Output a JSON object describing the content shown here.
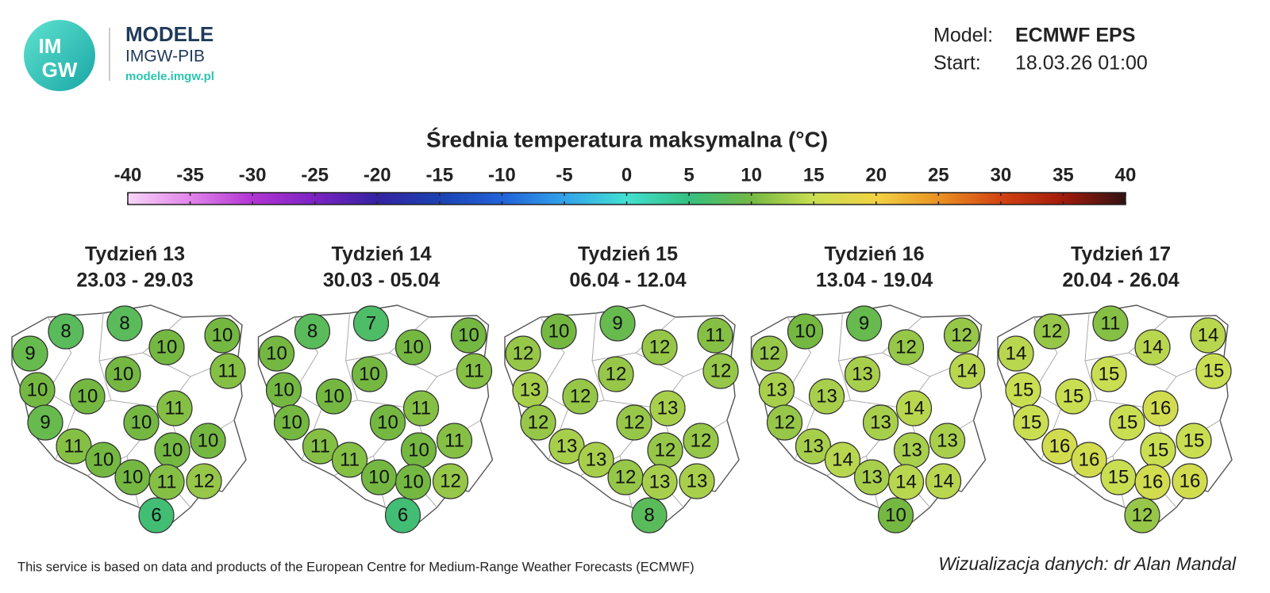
{
  "header": {
    "logo_lines": [
      "IM",
      "GW"
    ],
    "brand_title": "MODELE",
    "brand_subtitle": "IMGW-PIB",
    "brand_url": "modele.imgw.pl",
    "model_label": "Model:",
    "model_value": "ECMWF EPS",
    "start_label": "Start:",
    "start_value": "18.03.26 01:00"
  },
  "title": "Średnia temperatura maksymalna (°C)",
  "colorbar": {
    "ticks": [
      -40,
      -35,
      -30,
      -25,
      -20,
      -15,
      -10,
      -5,
      0,
      5,
      10,
      15,
      20,
      25,
      30,
      35,
      40
    ],
    "colors": [
      "#f7d6f7",
      "#e283ea",
      "#b234d4",
      "#7b22c2",
      "#3422a2",
      "#1b42b2",
      "#2262d8",
      "#32a2ea",
      "#42e0d2",
      "#34c080",
      "#74b842",
      "#cade52",
      "#f2d242",
      "#ea9222",
      "#d24212",
      "#a21a0a",
      "#321212"
    ]
  },
  "maps": [
    {
      "title": "Tydzień 13",
      "dates": "23.03 - 29.03",
      "values": [
        8,
        8,
        9,
        10,
        10,
        10,
        11,
        10,
        10,
        11,
        9,
        10,
        10,
        11,
        10,
        10,
        10,
        11,
        12,
        6
      ]
    },
    {
      "title": "Tydzień 14",
      "dates": "30.03 - 05.04",
      "values": [
        8,
        7,
        10,
        10,
        10,
        10,
        11,
        10,
        10,
        11,
        10,
        10,
        11,
        11,
        10,
        11,
        10,
        10,
        12,
        6
      ]
    },
    {
      "title": "Tydzień 15",
      "dates": "06.04 - 12.04",
      "values": [
        10,
        9,
        12,
        12,
        11,
        12,
        12,
        13,
        12,
        13,
        12,
        12,
        12,
        13,
        12,
        13,
        12,
        13,
        13,
        8
      ]
    },
    {
      "title": "Tydzień 16",
      "dates": "13.04 - 19.04",
      "values": [
        10,
        9,
        12,
        12,
        12,
        13,
        14,
        13,
        13,
        14,
        12,
        13,
        13,
        13,
        13,
        14,
        13,
        14,
        14,
        10
      ]
    },
    {
      "title": "Tydzień 17",
      "dates": "20.04 - 26.04",
      "values": [
        12,
        11,
        14,
        14,
        14,
        15,
        15,
        15,
        15,
        16,
        15,
        15,
        15,
        16,
        15,
        16,
        15,
        16,
        16,
        12
      ]
    }
  ],
  "footer": {
    "source": "This service is based on data and products of the European Centre for Medium-Range Weather Forecasts (ECMWF)",
    "credit": "Wizualizacja danych: dr Alan Mandal"
  }
}
